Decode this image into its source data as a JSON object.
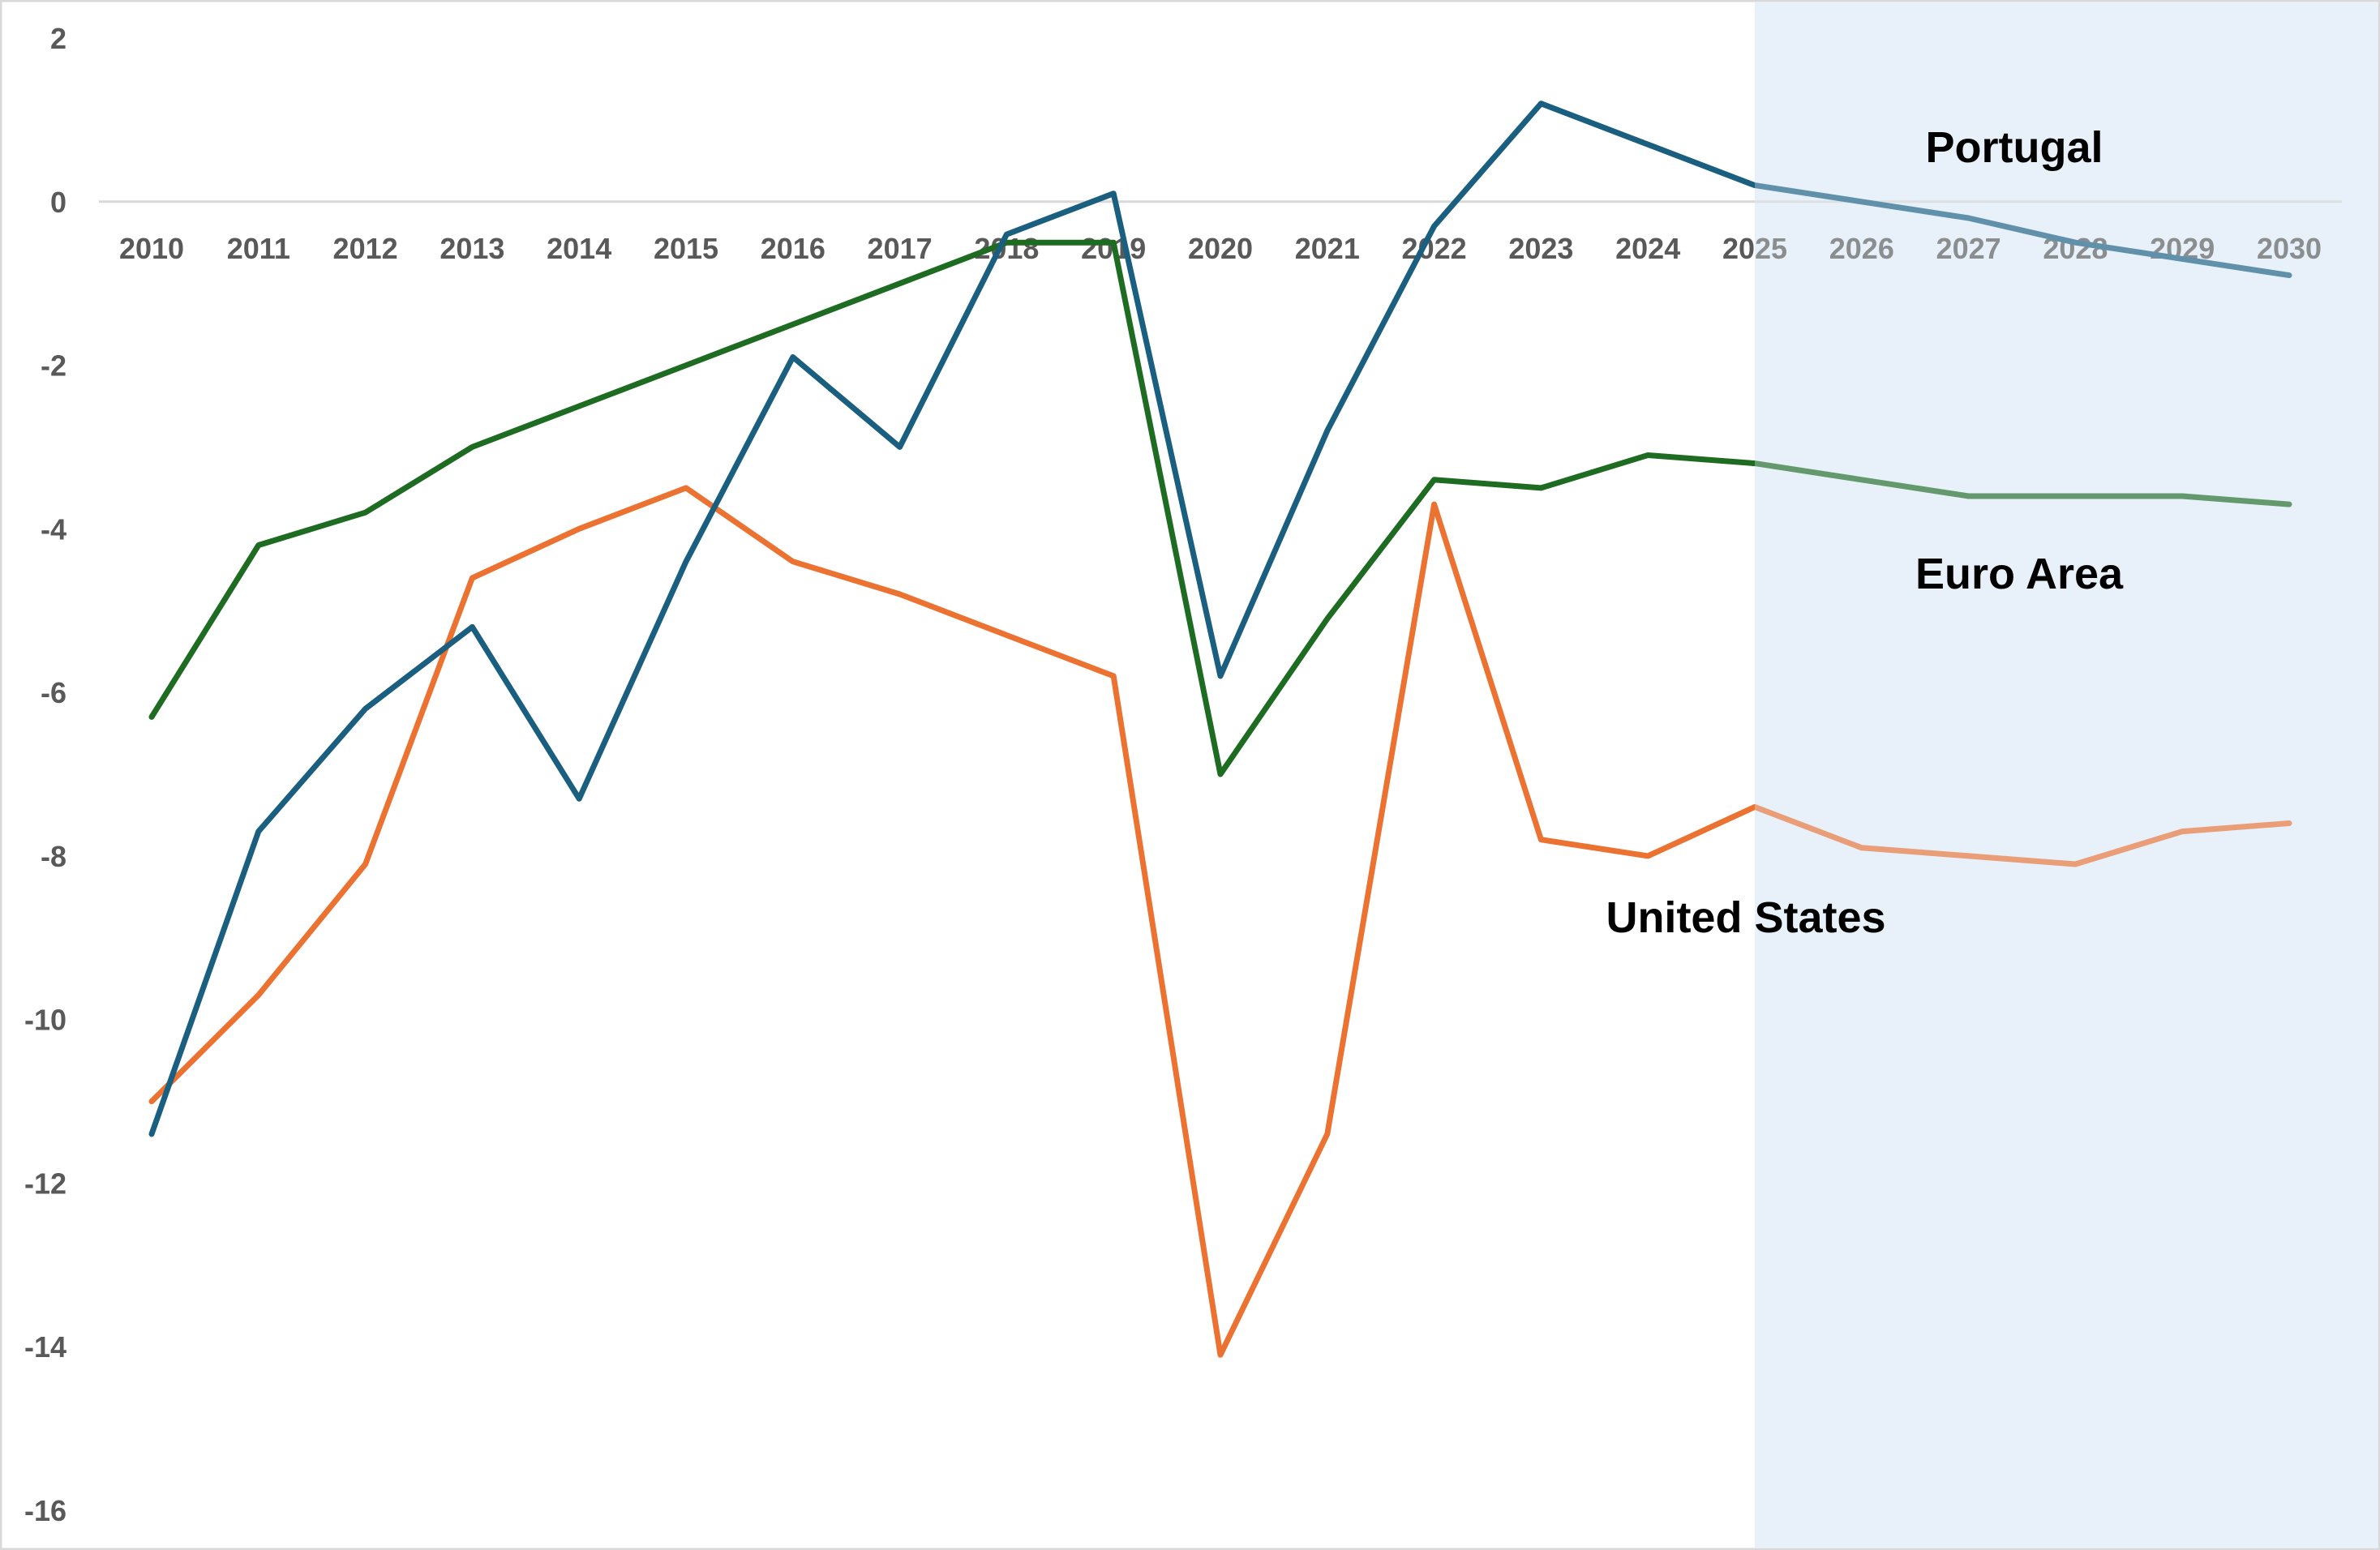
{
  "chart_data": {
    "type": "line",
    "title": "",
    "xlabel": "",
    "ylabel": "",
    "x": [
      2010,
      2011,
      2012,
      2013,
      2014,
      2015,
      2016,
      2017,
      2018,
      2019,
      2020,
      2021,
      2022,
      2023,
      2024,
      2025,
      2026,
      2027,
      2028,
      2029,
      2030
    ],
    "x_tick_labels": [
      "2010",
      "2011",
      "2012",
      "2013",
      "2014",
      "2015",
      "2016",
      "2017",
      "2018",
      "2019",
      "2020",
      "2021",
      "2022",
      "2023",
      "2024",
      "2025",
      "2026",
      "2027",
      "2028",
      "2029",
      "2030"
    ],
    "ylim": [
      -16,
      2
    ],
    "y_ticks": [
      2,
      0,
      -2,
      -4,
      -6,
      -8,
      -10,
      -12,
      -14,
      -16
    ],
    "y_tick_labels": [
      "2",
      "0",
      "-2",
      "-4",
      "-6",
      "-8",
      "-10",
      "-12",
      "-14",
      "-16"
    ],
    "grid": false,
    "zero_line": true,
    "forecast_shading_from": 2025,
    "series": [
      {
        "name": "Portugal",
        "color": "#1a5f80",
        "values": [
          -11.4,
          -7.7,
          -6.2,
          -5.2,
          -7.3,
          -4.4,
          -1.9,
          -3.0,
          -0.4,
          0.1,
          -5.8,
          -2.8,
          -0.3,
          1.2,
          0.7,
          0.2,
          0.0,
          -0.2,
          -0.5,
          -0.7,
          -0.9
        ]
      },
      {
        "name": "Euro Area",
        "color": "#1e6b22",
        "values": [
          -6.3,
          -4.2,
          -3.8,
          -3.0,
          -2.5,
          -2.0,
          -1.5,
          -1.0,
          -0.5,
          -0.5,
          -7.0,
          -5.1,
          -3.4,
          -3.5,
          -3.1,
          -3.2,
          -3.4,
          -3.6,
          -3.6,
          -3.6,
          -3.7
        ]
      },
      {
        "name": "United States",
        "color": "#ec7232",
        "values": [
          -11.0,
          -9.7,
          -8.1,
          -4.6,
          -4.0,
          -3.5,
          -4.4,
          -4.8,
          -5.3,
          -5.8,
          -14.1,
          -11.4,
          -3.7,
          -7.8,
          -8.0,
          -7.4,
          -7.9,
          -8.0,
          -8.1,
          -7.7,
          -7.6
        ]
      }
    ],
    "annotations": [
      "Portugal",
      "Euro Area",
      "United States"
    ],
    "legend": "none (inline labels)"
  }
}
